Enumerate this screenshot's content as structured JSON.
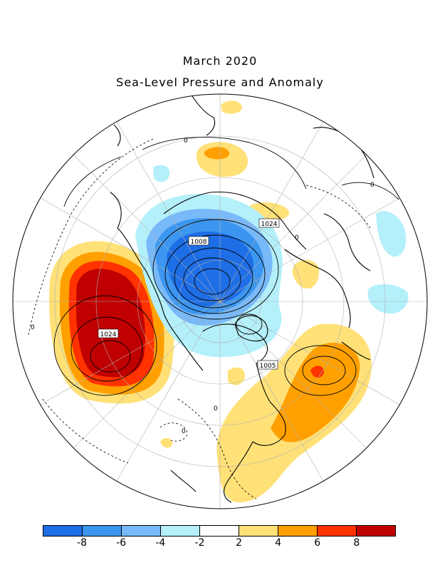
{
  "title": "March 2020",
  "subtitle": "Sea-Level Pressure and Anomaly",
  "colorbar": {
    "colors": [
      "#1e6ee6",
      "#3c96f0",
      "#78b9fa",
      "#b4f0fa",
      "#ffffff",
      "#ffe178",
      "#ffa000",
      "#ff3200",
      "#c00000"
    ],
    "ticks": [
      "-8",
      "-6",
      "-4",
      "-2",
      "2",
      "4",
      "6",
      "8"
    ]
  },
  "contour_labels": {
    "low_center": "1008",
    "pacific_high": "1024",
    "atlantic_high": "1024",
    "us_high": "1005",
    "zero_marks": [
      "0",
      "0",
      "0",
      "0",
      "0",
      "0"
    ]
  }
}
